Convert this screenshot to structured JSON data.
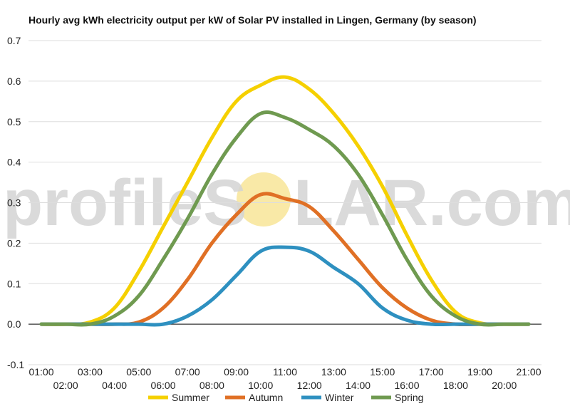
{
  "watermark": {
    "text_before": "profileS",
    "text_after": "LAR.com",
    "sun_color": "#f7e28a"
  },
  "chart_data": {
    "type": "line",
    "title": "Hourly avg kWh electricity output per kW of Solar PV installed in Lingen, Germany (by season)",
    "xlabel": "",
    "ylabel": "",
    "categories": [
      "01:00",
      "02:00",
      "03:00",
      "04:00",
      "05:00",
      "06:00",
      "07:00",
      "08:00",
      "09:00",
      "10:00",
      "11:00",
      "12:00",
      "13:00",
      "14:00",
      "15:00",
      "16:00",
      "17:00",
      "18:00",
      "19:00",
      "20:00",
      "21:00"
    ],
    "ylim": [
      -0.1,
      0.7
    ],
    "yticks": [
      "0.7",
      "0.6",
      "0.5",
      "0.4",
      "0.3",
      "0.2",
      "0.1",
      "0.0",
      "-0.1"
    ],
    "grid": true,
    "legend_position": "bottom",
    "series": [
      {
        "name": "Summer",
        "color": "#f5d000",
        "values": [
          0,
          0,
          0.005,
          0.04,
          0.13,
          0.24,
          0.35,
          0.46,
          0.55,
          0.59,
          0.61,
          0.58,
          0.52,
          0.44,
          0.34,
          0.22,
          0.11,
          0.03,
          0.003,
          0,
          0
        ]
      },
      {
        "name": "Autumn",
        "color": "#e07025",
        "values": [
          0,
          0,
          0,
          0,
          0.005,
          0.04,
          0.11,
          0.2,
          0.27,
          0.32,
          0.31,
          0.29,
          0.23,
          0.16,
          0.09,
          0.04,
          0.01,
          0,
          0,
          0,
          0
        ]
      },
      {
        "name": "Winter",
        "color": "#2e90c0",
        "values": [
          0,
          0,
          0,
          0,
          0,
          0,
          0.02,
          0.06,
          0.12,
          0.18,
          0.19,
          0.18,
          0.14,
          0.1,
          0.04,
          0.01,
          0,
          0,
          0,
          0,
          0
        ]
      },
      {
        "name": "Spring",
        "color": "#6f9a50",
        "values": [
          0,
          0,
          0,
          0.02,
          0.07,
          0.16,
          0.26,
          0.37,
          0.46,
          0.52,
          0.51,
          0.48,
          0.44,
          0.37,
          0.27,
          0.16,
          0.07,
          0.02,
          0,
          0,
          0
        ]
      }
    ]
  }
}
